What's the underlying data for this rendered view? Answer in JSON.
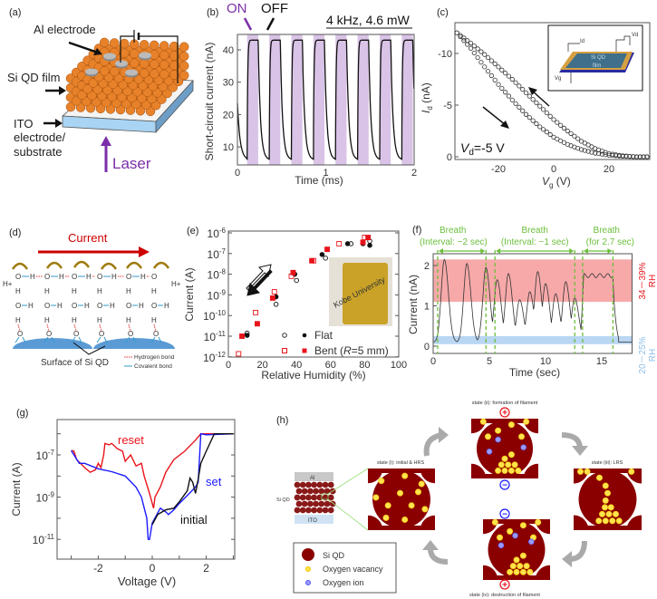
{
  "panels": {
    "a": {
      "label": "(a)",
      "al_electrode": "Al electrode",
      "si_qd_film": "Si QD film",
      "ito_line1": "ITO",
      "ito_line2": "electrode/",
      "ito_line3": "substrate",
      "laser": "Laser"
    },
    "b": {
      "label": "(b)",
      "on": "ON",
      "off": "OFF",
      "condition": "4 kHz,  4.6 mW"
    },
    "c": {
      "label": "(c)",
      "condition_var": "V",
      "condition_sub": "d",
      "condition_rest": "=-5 V",
      "inset": {
        "id_label": "Id",
        "vd_label": "Vd",
        "vg_label": "Vg",
        "film_line1": "Si QD",
        "film_line2": "film"
      }
    },
    "d": {
      "label": "(d)",
      "current": "Current",
      "proton": "H+",
      "oxygen": "O",
      "hydrogen": "H",
      "surface": "Surface of Si QD",
      "hydrogen_bond": "Hydrogen bond",
      "covalent_bond": "Covalent bond"
    },
    "e": {
      "label": "(e)",
      "inset_photo_text": "Kobe University"
    },
    "f": {
      "label": "(f)"
    },
    "g": {
      "label": "(g)"
    },
    "h": {
      "label": "(h)",
      "al": "Al",
      "ito": "ITO",
      "si_qd": "Si QD",
      "state_i": "state (i): initial & HRS",
      "state_ii": "state (ii): formation of filament",
      "state_iii": "state (iii): LRS",
      "state_iv": "state (iv): destruction of filament",
      "legend": [
        "Si QD",
        "Oxygen vacancy",
        "Oxygen ion"
      ],
      "plus": "+",
      "minus": "−"
    }
  },
  "colors": {
    "on_purple": "#7b2fa8",
    "band_purple": "#d9c3e6",
    "red": "#e8141b",
    "blue": "#1a1aff",
    "green": "#6cbf3c",
    "rh_high": "#f7a9a9",
    "rh_low": "#b9d6f2",
    "qd_red": "#8a0000",
    "vacancy": "#ffe34d",
    "ion": "#7777ff"
  },
  "chart_data": [
    {
      "panel": "b",
      "type": "line",
      "xlabel": "Time (ms)",
      "ylabel": "Short-circuit current (nA)",
      "xlim": [
        0,
        2
      ],
      "ylim": [
        4.4,
        44.8
      ],
      "xticks": [
        "0",
        "1",
        "2"
      ],
      "yticks": [
        "10",
        "20",
        "30",
        "40"
      ],
      "modulation_frequency_khz": 4,
      "on_intervals_ms": [
        [
          0.11,
          0.235
        ],
        [
          0.36,
          0.485
        ],
        [
          0.61,
          0.735
        ],
        [
          0.86,
          0.985
        ],
        [
          1.11,
          1.235
        ],
        [
          1.36,
          1.485
        ],
        [
          1.61,
          1.735
        ],
        [
          1.86,
          1.985
        ]
      ],
      "on_level_na": 43,
      "off_min_na": 6
    },
    {
      "panel": "c",
      "type": "scatter",
      "xlabel_var": "V",
      "xlabel_sub": "g",
      "xlabel_rest": " (V)",
      "ylabel_var": "I",
      "ylabel_sub": "d",
      "ylabel_rest": " (nA)",
      "xlim": [
        -35.6,
        35
      ],
      "ylim": [
        0.3,
        -13
      ],
      "xticks": [
        "-20",
        "0",
        "20"
      ],
      "yticks": [
        "0",
        "-5",
        "-10"
      ],
      "x": [
        -35,
        -30,
        -25,
        -20,
        -15,
        -10,
        -5,
        0,
        5,
        10,
        15,
        20,
        25,
        30,
        35
      ],
      "series": [
        {
          "sweep": "backward",
          "values": [
            -12,
            -11,
            -9.9,
            -8.7,
            -7.5,
            -6.2,
            -4.9,
            -3.6,
            -2.5,
            -1.5,
            -0.8,
            -0.3,
            -0.1,
            0,
            0
          ]
        },
        {
          "sweep": "forward",
          "values": [
            -12,
            -10.5,
            -8.7,
            -7.0,
            -5.5,
            -4.1,
            -2.9,
            -1.9,
            -1.2,
            -0.7,
            -0.35,
            -0.15,
            -0.05,
            0,
            0
          ]
        }
      ]
    },
    {
      "panel": "e",
      "type": "scatter",
      "xlabel": "Relative Humidity (%)",
      "ylabel": "Current (A)",
      "xlim": [
        0,
        100
      ],
      "ylim": [
        1e-12,
        1e-06
      ],
      "yscale": "log",
      "xticks": [
        "0",
        "20",
        "40",
        "60",
        "80",
        "100"
      ],
      "yticks_exp": [
        "-6",
        "-7",
        "-8",
        "-9",
        "-10",
        "-11",
        "-12"
      ],
      "legend_flat": "Flat",
      "legend_bent_pre": "Bent (",
      "legend_bent_r": "R",
      "legend_bent_post": "=5 mm)",
      "series": [
        {
          "name": "Flat",
          "fill": "filled",
          "points": [
            [
              11,
              1.1e-11
            ],
            [
              28,
              8e-10
            ],
            [
              39,
              1e-08
            ],
            [
              55,
              9e-08
            ],
            [
              70,
              3e-07
            ],
            [
              79,
              3e-07
            ],
            [
              83,
              2.5e-07
            ]
          ]
        },
        {
          "name": "Flat",
          "fill": "open",
          "points": [
            [
              11,
              1.4e-11
            ],
            [
              28,
              3.5e-10
            ],
            [
              40,
              5e-09
            ],
            [
              57,
              6e-08
            ],
            [
              72,
              3e-07
            ],
            [
              83,
              4e-07
            ]
          ]
        },
        {
          "name": "Bent (R=5 mm)",
          "fill": "filled",
          "points": [
            [
              8,
              1e-11
            ],
            [
              17,
              4e-11
            ],
            [
              26,
              7e-10
            ],
            [
              38,
              1.2e-08
            ],
            [
              49,
              4.5e-08
            ],
            [
              58,
              1.6e-07
            ],
            [
              79,
              3.5e-07
            ],
            [
              82,
              6e-07
            ]
          ]
        },
        {
          "name": "Bent (R=5 mm)",
          "fill": "open",
          "points": [
            [
              6,
              1.4e-12
            ],
            [
              16,
              1.4e-10
            ],
            [
              27,
              1.4e-09
            ],
            [
              37,
              8e-09
            ],
            [
              50,
              4.5e-08
            ],
            [
              65,
              3e-07
            ],
            [
              80,
              6e-07
            ]
          ]
        }
      ]
    },
    {
      "panel": "f",
      "type": "line",
      "xlabel": "Time (sec)",
      "ylabel": "Current (nA)",
      "xlim": [
        0,
        17.7
      ],
      "ylim": [
        -0.2,
        2.25
      ],
      "xticks": [
        "0",
        "5",
        "10",
        "15"
      ],
      "yticks": [
        "0",
        "1",
        "2"
      ],
      "breaths": [
        {
          "line1": "Breath",
          "line2": "(Interval: ~2 sec)",
          "range": [
            0.4,
            4.7
          ]
        },
        {
          "line1": "Breath",
          "line2": "(Interval: ~1 sec)",
          "range": [
            5.5,
            12.6
          ]
        },
        {
          "line1": "Breath",
          "line2": "(for 2.7 sec)",
          "range": [
            13.3,
            16.0
          ]
        }
      ],
      "rh_high_band_na": [
        1.1,
        2.15
      ],
      "rh_high_label": "34－39%",
      "rh_low_band_na": [
        0.05,
        0.25
      ],
      "rh_low_label": "20－25%",
      "rh_unit": "RH",
      "baseline_na": 0.1,
      "peaks": [
        [
          1.0,
          2.15
        ],
        [
          3.0,
          2.05
        ],
        [
          4.7,
          1.95
        ],
        [
          5.7,
          1.65
        ],
        [
          6.7,
          1.8
        ],
        [
          7.7,
          1.15
        ],
        [
          8.6,
          1.35
        ],
        [
          9.3,
          1.85
        ],
        [
          10.0,
          1.55
        ],
        [
          10.9,
          1.3
        ],
        [
          11.8,
          1.6
        ],
        [
          12.6,
          1.2
        ]
      ],
      "plateau": {
        "start": 13.4,
        "end": 16.0,
        "level": 1.75
      }
    },
    {
      "panel": "g",
      "type": "line",
      "xlabel": "Voltage (V)",
      "ylabel": "Current (A)",
      "xlim": [
        -3.5,
        3.05
      ],
      "ylim": [
        1.3e-12,
        6e-06
      ],
      "yscale": "log",
      "xticks": [
        "-2",
        "0",
        "2"
      ],
      "yticks_exp": [
        "-7",
        "-9",
        "-11"
      ],
      "series": [
        {
          "name": "reset",
          "points": [
            [
              -3,
              1.6e-07
            ],
            [
              -2.9,
              1.5e-07
            ],
            [
              -2.8,
              6e-08
            ],
            [
              -2.5,
              2.5e-08
            ],
            [
              -2.3,
              1.5e-08
            ],
            [
              -2.1,
              2e-08
            ],
            [
              -2,
              4e-08
            ],
            [
              -1.9,
              2.5e-08
            ],
            [
              -1.8,
              1e-07
            ],
            [
              -1.75,
              3.5e-07
            ],
            [
              -1.6,
              3e-07
            ],
            [
              -1.5,
              3.5e-07
            ],
            [
              -1.3,
              2e-07
            ],
            [
              -1.1,
              1.5e-07
            ],
            [
              -1.0,
              5e-08
            ],
            [
              -0.8,
              1e-07
            ],
            [
              -0.6,
              3e-08
            ],
            [
              -0.4,
              4e-08
            ],
            [
              -0.3,
              1e-08
            ],
            [
              -0.1,
              1.5e-09
            ],
            [
              0,
              5e-10
            ],
            [
              0.05,
              3e-10
            ],
            [
              0.1,
              1e-09
            ],
            [
              0.3,
              3e-09
            ],
            [
              0.5,
              1.5e-08
            ],
            [
              0.8,
              6e-08
            ],
            [
              1.2,
              1.5e-07
            ],
            [
              1.6,
              5e-07
            ],
            [
              1.8,
              1e-06
            ],
            [
              3,
              1e-06
            ]
          ]
        },
        {
          "name": "set",
          "points": [
            [
              -3,
              1.6e-07
            ],
            [
              -2.7,
              4e-08
            ],
            [
              -2.5,
              4e-08
            ],
            [
              -2,
              2.2e-08
            ],
            [
              -1.5,
              1.6e-08
            ],
            [
              -1,
              1e-08
            ],
            [
              -0.6,
              3e-09
            ],
            [
              -0.4,
              1e-09
            ],
            [
              -0.2,
              1e-10
            ],
            [
              -0.15,
              1e-11
            ],
            [
              -0.1,
              1e-11
            ],
            [
              0,
              6e-11
            ],
            [
              0.3,
              3e-10
            ],
            [
              0.5,
              2e-10
            ],
            [
              0.6,
              1.5e-10
            ],
            [
              0.8,
              2.5e-10
            ],
            [
              1.0,
              5e-10
            ],
            [
              1.3,
              1.2e-09
            ],
            [
              1.6,
              3e-09
            ],
            [
              1.7,
              5e-09
            ],
            [
              1.8,
              1e-06
            ],
            [
              2.0,
              9e-07
            ],
            [
              3,
              1e-06
            ]
          ]
        },
        {
          "name": "initial",
          "points": [
            [
              0,
              5e-11
            ],
            [
              0.2,
              1.5e-10
            ],
            [
              0.5,
              2.5e-10
            ],
            [
              0.8,
              3e-10
            ],
            [
              1.0,
              6e-10
            ],
            [
              1.3,
              2e-09
            ],
            [
              1.4,
              8e-09
            ],
            [
              1.5,
              5e-09
            ],
            [
              1.6,
              1.5e-09
            ],
            [
              1.7,
              7e-09
            ],
            [
              1.8,
              4e-08
            ],
            [
              2.0,
              1.5e-07
            ],
            [
              2.3,
              1e-06
            ],
            [
              3,
              1e-06
            ]
          ]
        }
      ]
    }
  ]
}
